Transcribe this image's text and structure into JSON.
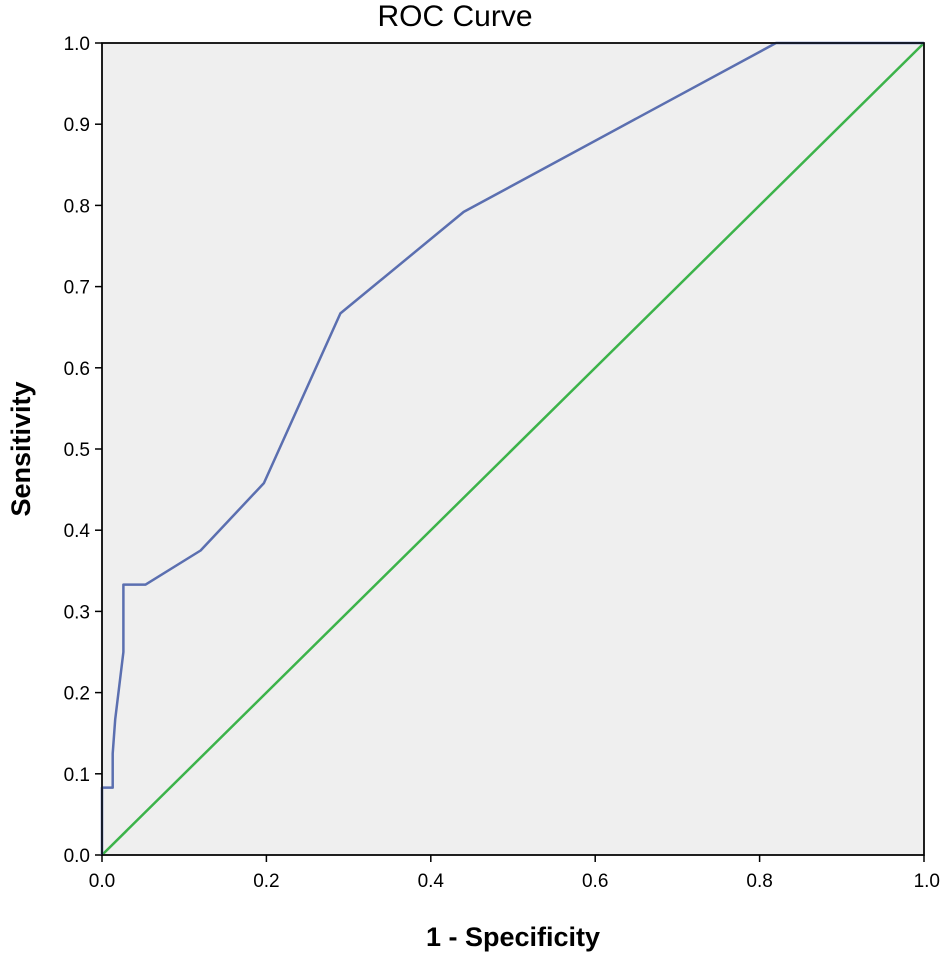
{
  "chart_data": {
    "type": "line",
    "title": "ROC Curve",
    "xlabel": "1 - Specificity",
    "ylabel": "Sensitivity",
    "xlim": [
      0.0,
      1.0
    ],
    "ylim": [
      0.0,
      1.0
    ],
    "xticks": [
      "0.0",
      "0.2",
      "0.4",
      "0.6",
      "0.8",
      "1.0"
    ],
    "yticks": [
      "0.0",
      "0.1",
      "0.2",
      "0.3",
      "0.4",
      "0.5",
      "0.6",
      "0.7",
      "0.8",
      "0.9",
      "1.0"
    ],
    "grid": false,
    "background_color": "#efefef",
    "series": [
      {
        "color": "#5b6fb0",
        "x": [
          0.0,
          0.0,
          0.013,
          0.013,
          0.016,
          0.026,
          0.026,
          0.053,
          0.12,
          0.197,
          0.29,
          0.44,
          0.82,
          1.0
        ],
        "y": [
          0.0,
          0.083,
          0.083,
          0.125,
          0.167,
          0.25,
          0.333,
          0.333,
          0.375,
          0.458,
          0.667,
          0.792,
          1.0,
          1.0
        ]
      },
      {
        "color": "#3cb34a",
        "x": [
          0.0,
          1.0
        ],
        "y": [
          0.0,
          1.0
        ]
      }
    ]
  }
}
